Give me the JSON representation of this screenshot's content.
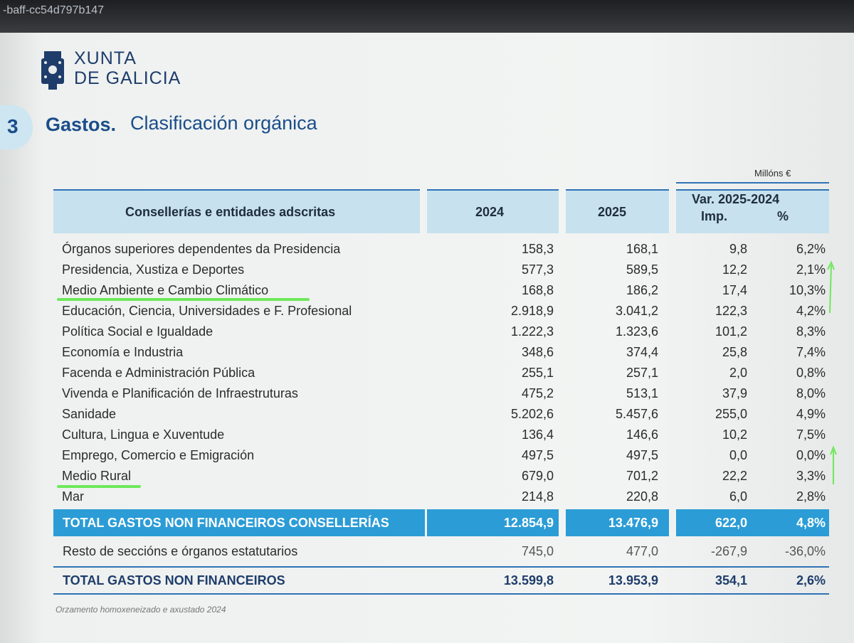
{
  "browser_tab": "-baff-cc54d797b147",
  "header": {
    "logo_line1": "XUNTA",
    "logo_line2": "DE GALICIA"
  },
  "section": {
    "number": "3",
    "title_bold": "Gastos.",
    "title": "Clasificación orgánica"
  },
  "table": {
    "unit": "Millóns €",
    "columns": [
      "Consellerías e entidades adscritas",
      "2024",
      "2025",
      "Var. 2025-2024"
    ],
    "subcolumns": [
      "Imp.",
      "%"
    ],
    "rows": [
      [
        "Órganos superiores dependentes da Presidencia",
        "158,3",
        "168,1",
        "9,8",
        "6,2%"
      ],
      [
        "Presidencia, Xustiza e Deportes",
        "577,3",
        "589,5",
        "12,2",
        "2,1%"
      ],
      [
        "Medio Ambiente e Cambio Climático",
        "168,8",
        "186,2",
        "17,4",
        "10,3%"
      ],
      [
        "Educación, Ciencia, Universidades e F. Profesional",
        "2.918,9",
        "3.041,2",
        "122,3",
        "4,2%"
      ],
      [
        "Política Social e Igualdade",
        "1.222,3",
        "1.323,6",
        "101,2",
        "8,3%"
      ],
      [
        "Economía e Industria",
        "348,6",
        "374,4",
        "25,8",
        "7,4%"
      ],
      [
        "Facenda e Administración Pública",
        "255,1",
        "257,1",
        "2,0",
        "0,8%"
      ],
      [
        "Vivenda e Planificación de Infraestruturas",
        "475,2",
        "513,1",
        "37,9",
        "8,0%"
      ],
      [
        "Sanidade",
        "5.202,6",
        "5.457,6",
        "255,0",
        "4,9%"
      ],
      [
        "Cultura, Lingua e Xuventude",
        "136,4",
        "146,6",
        "10,2",
        "7,5%"
      ],
      [
        "Emprego, Comercio e Emigración",
        "497,5",
        "497,5",
        "0,0",
        "0,0%"
      ],
      [
        "Medio Rural",
        "679,0",
        "701,2",
        "22,2",
        "3,3%"
      ],
      [
        "Mar",
        "214,8",
        "220,8",
        "6,0",
        "2,8%"
      ]
    ],
    "total_consellerias": [
      "TOTAL GASTOS NON FINANCEIROS CONSELLERÍAS",
      "12.854,9",
      "13.476,9",
      "622,0",
      "4,8%"
    ],
    "resto": [
      "Resto de seccións e órganos estatutarios",
      "745,0",
      "477,0",
      "-267,9",
      "-36,0%"
    ],
    "total": [
      "TOTAL GASTOS NON FINANCEIROS",
      "13.599,8",
      "13.953,9",
      "354,1",
      "2,6%"
    ]
  },
  "footnote": "Orzamento homoxeneizado e axustado 2024"
}
